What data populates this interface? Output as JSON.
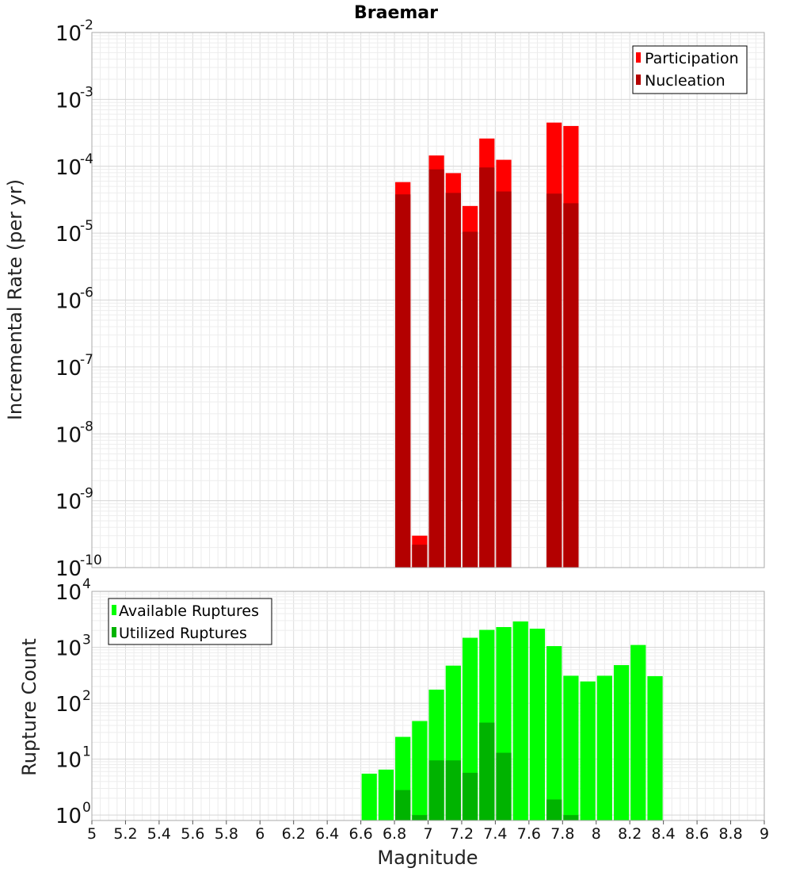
{
  "chart_data": [
    {
      "type": "bar",
      "title": "Braemar",
      "ylabel": "Incremental Rate (per yr)",
      "xlabel": "",
      "xlim": [
        5,
        9
      ],
      "ylim": [
        1e-10,
        0.01
      ],
      "yscale": "log",
      "grid": true,
      "legend_position": "top-right",
      "bin_width": 0.1,
      "x": [
        6.85,
        6.95,
        7.05,
        7.15,
        7.25,
        7.35,
        7.45,
        7.75,
        7.85
      ],
      "series": [
        {
          "name": "Participation",
          "color": "#ff0000",
          "values": [
            5.8e-05,
            3e-10,
            0.000145,
            7.9e-05,
            2.55e-05,
            0.00026,
            0.000125,
            0.00045,
            0.0004
          ]
        },
        {
          "name": "Nucleation",
          "color": "#b30000",
          "values": [
            3.8e-05,
            2.2e-10,
            9e-05,
            4e-05,
            1.05e-05,
            9.6e-05,
            4.2e-05,
            3.9e-05,
            2.8e-05
          ]
        }
      ]
    },
    {
      "type": "bar",
      "title": "",
      "ylabel": "Rupture Count",
      "xlabel": "Magnitude",
      "xlim": [
        5,
        9
      ],
      "ylim": [
        0.8,
        10000
      ],
      "yscale": "log",
      "grid": true,
      "legend_position": "top-left",
      "bin_width": 0.1,
      "xticks": [
        "5",
        "5.2",
        "5.4",
        "5.6",
        "5.8",
        "6",
        "6.2",
        "6.4",
        "6.6",
        "6.8",
        "7",
        "7.2",
        "7.4",
        "7.6",
        "7.8",
        "8",
        "8.2",
        "8.4",
        "8.6",
        "8.8",
        "9"
      ],
      "available_x": [
        6.65,
        6.75,
        6.85,
        6.95,
        7.05,
        7.15,
        7.25,
        7.35,
        7.45,
        7.55,
        7.65,
        7.75,
        7.85,
        7.95,
        8.05,
        8.15,
        8.25,
        8.35
      ],
      "utilized_x": [
        6.85,
        6.95,
        7.05,
        7.15,
        7.25,
        7.35,
        7.45,
        7.75,
        7.85
      ],
      "series": [
        {
          "name": "Available Ruptures",
          "color": "#00ff00",
          "values": [
            5.5,
            6.5,
            25,
            48,
            175,
            470,
            1480,
            2050,
            2300,
            2900,
            2150,
            1050,
            310,
            245,
            310,
            480,
            1100,
            305
          ]
        },
        {
          "name": "Utilized Ruptures",
          "color": "#00b300",
          "values": [
            2.8,
            1,
            9.5,
            9.5,
            5.7,
            45,
            13,
            1.9,
            1
          ]
        }
      ]
    }
  ]
}
